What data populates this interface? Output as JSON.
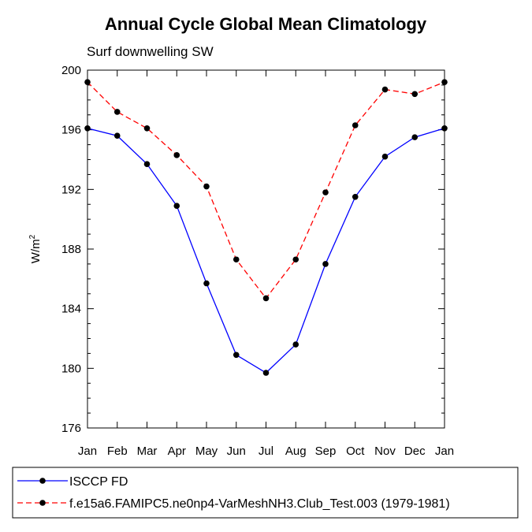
{
  "chart_data": {
    "type": "line",
    "title": "Annual Cycle Global Mean Climatology",
    "subtitle": "Surf downwelling SW",
    "ylabel_base": "W/m",
    "ylabel_sup": "2",
    "xlabel": "",
    "categories": [
      "Jan",
      "Feb",
      "Mar",
      "Apr",
      "May",
      "Jun",
      "Jul",
      "Aug",
      "Sep",
      "Oct",
      "Nov",
      "Dec",
      "Jan"
    ],
    "ylim": [
      176,
      200
    ],
    "yticks": [
      176,
      180,
      184,
      188,
      192,
      196,
      200
    ],
    "grid": false,
    "legend_position": "bottom",
    "series": [
      {
        "name": "ISCCP FD",
        "color": "#0000ff",
        "dash": "solid",
        "values": [
          196.1,
          195.6,
          193.7,
          190.9,
          185.7,
          180.9,
          179.7,
          181.6,
          187.0,
          191.5,
          194.2,
          195.5,
          196.1
        ]
      },
      {
        "name": "f.e15a6.FAMIPC5.ne0np4-VarMeshNH3.Club_Test.003 (1979-1981)",
        "color": "#ff0000",
        "dash": "dashed",
        "values": [
          199.2,
          197.2,
          196.1,
          194.3,
          192.2,
          187.3,
          184.7,
          187.3,
          191.8,
          196.3,
          198.7,
          198.4,
          199.2
        ]
      }
    ]
  }
}
